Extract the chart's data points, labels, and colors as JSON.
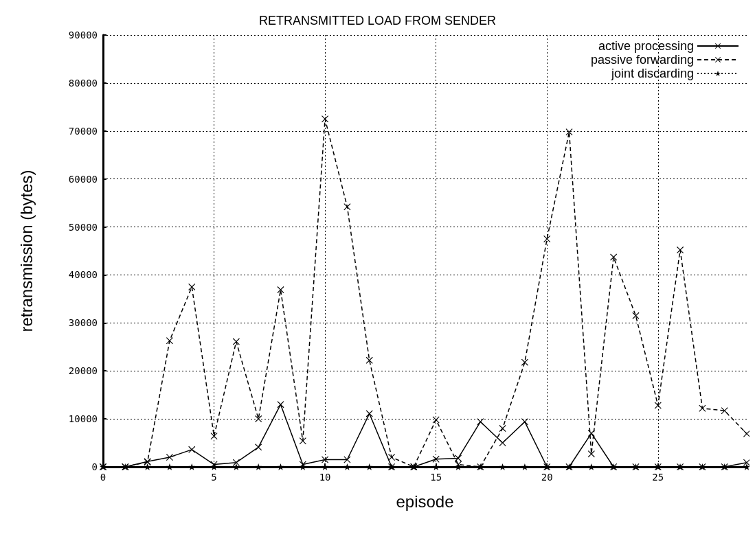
{
  "chart_data": {
    "type": "line",
    "title": "RETRANSMITTED LOAD FROM SENDER",
    "xlabel": "episode",
    "ylabel": "retransmission (bytes)",
    "x": [
      0,
      1,
      2,
      3,
      4,
      5,
      6,
      7,
      8,
      9,
      10,
      11,
      12,
      13,
      14,
      15,
      16,
      17,
      18,
      19,
      20,
      21,
      22,
      23,
      24,
      25,
      26,
      27,
      28,
      29
    ],
    "xlim": [
      0,
      29
    ],
    "xticks": [
      0,
      5,
      10,
      15,
      20,
      25
    ],
    "ylim": [
      0,
      90000
    ],
    "yticks": [
      0,
      10000,
      20000,
      30000,
      40000,
      50000,
      60000,
      70000,
      80000,
      90000
    ],
    "grid": true,
    "legend": "top right",
    "series": [
      {
        "name": "active processing",
        "color": "#000000",
        "marker": "cross",
        "line_style": "solid",
        "values": [
          0,
          0,
          1100,
          2000,
          3600,
          500,
          900,
          4100,
          13000,
          500,
          1500,
          1500,
          11100,
          0,
          0,
          1600,
          1800,
          9400,
          5000,
          9400,
          0,
          0,
          7000,
          0,
          0,
          0,
          0,
          0,
          0,
          900
        ]
      },
      {
        "name": "passive forwarding",
        "color": "#000000",
        "marker": "cross",
        "line_style": "dashed",
        "values": [
          0,
          0,
          1000,
          26300,
          37500,
          6400,
          26100,
          10000,
          36900,
          5400,
          72500,
          54200,
          22200,
          2000,
          0,
          9800,
          500,
          0,
          8000,
          21800,
          47500,
          69800,
          2700,
          43700,
          31500,
          12800,
          45200,
          12200,
          11700,
          6900
        ]
      },
      {
        "name": "joint discarding",
        "color": "#000000",
        "marker": "star",
        "line_style": "dotted",
        "values": [
          0,
          0,
          0,
          0,
          0,
          0,
          0,
          0,
          0,
          0,
          0,
          0,
          0,
          0,
          0,
          0,
          0,
          0,
          0,
          0,
          0,
          0,
          0,
          0,
          0,
          0,
          0,
          0,
          0,
          0
        ]
      }
    ]
  }
}
